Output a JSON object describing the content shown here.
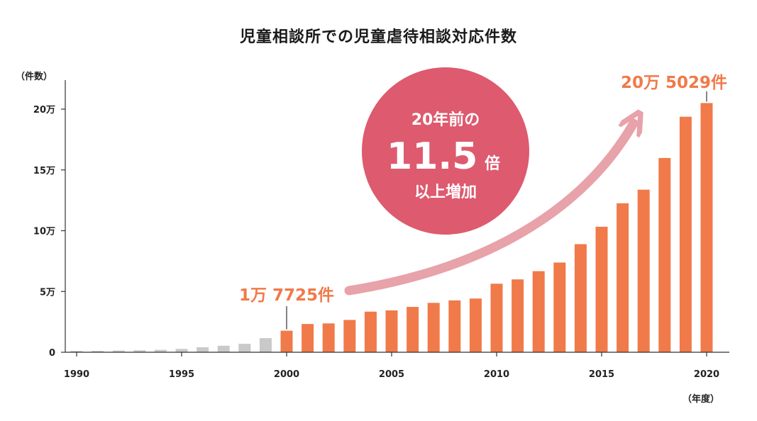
{
  "title": "児童相談所での児童虐待相談対応件数",
  "colors": {
    "highlight_bar": "#f07a4a",
    "muted_bar": "#c9c9c9",
    "circle": "#de5a6e",
    "arrow": "#e8a2a9",
    "callout_text": "#f07a4a",
    "axis": "#333333"
  },
  "chart_data": {
    "type": "bar",
    "title": "児童相談所での児童虐待相談対応件数",
    "ylabel": "（件数）",
    "xlabel": "（年度）",
    "ylim": [
      0,
      225000
    ],
    "x": [
      1990,
      1991,
      1992,
      1993,
      1994,
      1995,
      1996,
      1997,
      1998,
      1999,
      2000,
      2001,
      2002,
      2003,
      2004,
      2005,
      2006,
      2007,
      2008,
      2009,
      2010,
      2011,
      2012,
      2013,
      2014,
      2015,
      2016,
      2017,
      2018,
      2019,
      2020
    ],
    "values": [
      1101,
      1171,
      1372,
      1611,
      1961,
      2722,
      4102,
      5352,
      6932,
      11631,
      17725,
      23274,
      23738,
      26569,
      33408,
      34472,
      37323,
      40639,
      42664,
      44211,
      56384,
      59919,
      66701,
      73802,
      88931,
      103286,
      122575,
      133778,
      159838,
      193780,
      205029
    ],
    "highlight_from": 2000,
    "x_ticks": [
      {
        "value": 1990,
        "label": "1990"
      },
      {
        "value": 1995,
        "label": "1995"
      },
      {
        "value": 2000,
        "label": "2000"
      },
      {
        "value": 2005,
        "label": "2005"
      },
      {
        "value": 2010,
        "label": "2010"
      },
      {
        "value": 2015,
        "label": "2015"
      },
      {
        "value": 2020,
        "label": "2020"
      }
    ],
    "y_ticks": [
      {
        "value": 0,
        "label": "0"
      },
      {
        "value": 50000,
        "label": "5万"
      },
      {
        "value": 100000,
        "label": "10万"
      },
      {
        "value": 150000,
        "label": "15万"
      },
      {
        "value": 200000,
        "label": "20万"
      }
    ],
    "grid": false,
    "annotations": [
      {
        "text": "1万 7725件",
        "x": 2000,
        "value": 17725
      },
      {
        "text": "20万 5029件",
        "x": 2020,
        "value": 205029
      }
    ],
    "badge": {
      "line1": "20年前の",
      "multiplier": "11.5",
      "multiplier_unit": "倍",
      "line3": "以上増加"
    }
  }
}
